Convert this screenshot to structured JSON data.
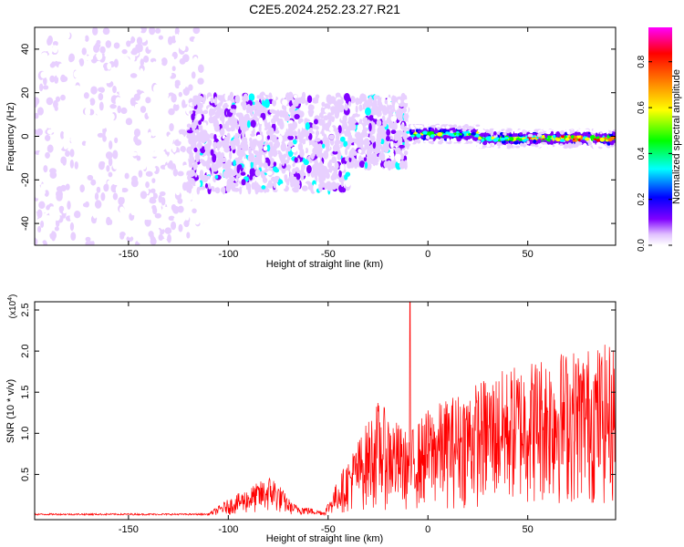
{
  "title": "C2E5.2024.252.23.27.R21",
  "chart_data": [
    {
      "type": "heatmap",
      "title": "C2E5.2024.252.23.27.R21",
      "xlabel": "Height of straight line (km)",
      "ylabel": "Frequency (Hz)",
      "xlim": [
        -197,
        94
      ],
      "ylim": [
        -50,
        50
      ],
      "xticks": [
        -150,
        -100,
        -50,
        0,
        50
      ],
      "yticks": [
        -40,
        -20,
        0,
        20,
        40
      ],
      "colorbar": {
        "label": "Normalized spectral amplitude",
        "range": [
          0,
          0.95
        ],
        "ticks": [
          0.0,
          0.2,
          0.4,
          0.6,
          0.8
        ],
        "colormap": [
          "#ffffff",
          "#e8d0ff",
          "#8000ff",
          "#0000ff",
          "#00ffff",
          "#00ff00",
          "#ffff00",
          "#ff8000",
          "#ff0000",
          "#ff00ff"
        ]
      },
      "regions": [
        {
          "x_range": [
            -197,
            -120
          ],
          "freq_range": [
            -50,
            50
          ],
          "amplitude": 0.05
        },
        {
          "x_range": [
            -120,
            -10
          ],
          "freq_range": [
            -25,
            15
          ],
          "amplitude": 0.15
        },
        {
          "x_range": [
            -10,
            94
          ],
          "freq_range": [
            -4,
            4
          ],
          "amplitude": 0.6
        }
      ]
    },
    {
      "type": "line",
      "xlabel": "Height of straight line (km)",
      "ylabel": "SNR (10 * v/v)",
      "y_multiplier_label": "(x10",
      "y_multiplier_exponent": "4",
      "xlim": [
        -197,
        94
      ],
      "ylim": [
        -0.05,
        2.6
      ],
      "xticks": [
        -150,
        -100,
        -50,
        0,
        50
      ],
      "yticks": [
        0.5,
        1.0,
        1.5,
        2.0,
        2.5
      ],
      "color": "#ff0000",
      "series": [
        {
          "envelope": [
            {
              "x": -197,
              "y": 0.02
            },
            {
              "x": -110,
              "y": 0.03
            },
            {
              "x": -100,
              "y": 0.2
            },
            {
              "x": -78,
              "y": 0.5
            },
            {
              "x": -68,
              "y": 0.15
            },
            {
              "x": -52,
              "y": 0.05
            },
            {
              "x": -45,
              "y": 0.45
            },
            {
              "x": -25,
              "y": 1.4
            },
            {
              "x": -10,
              "y": 1.0
            },
            {
              "x": 0,
              "y": 1.3
            },
            {
              "x": 30,
              "y": 1.7
            },
            {
              "x": 60,
              "y": 2.0
            },
            {
              "x": 94,
              "y": 2.1
            }
          ],
          "peak": {
            "x": -9,
            "y": 2.6
          }
        }
      ]
    }
  ]
}
